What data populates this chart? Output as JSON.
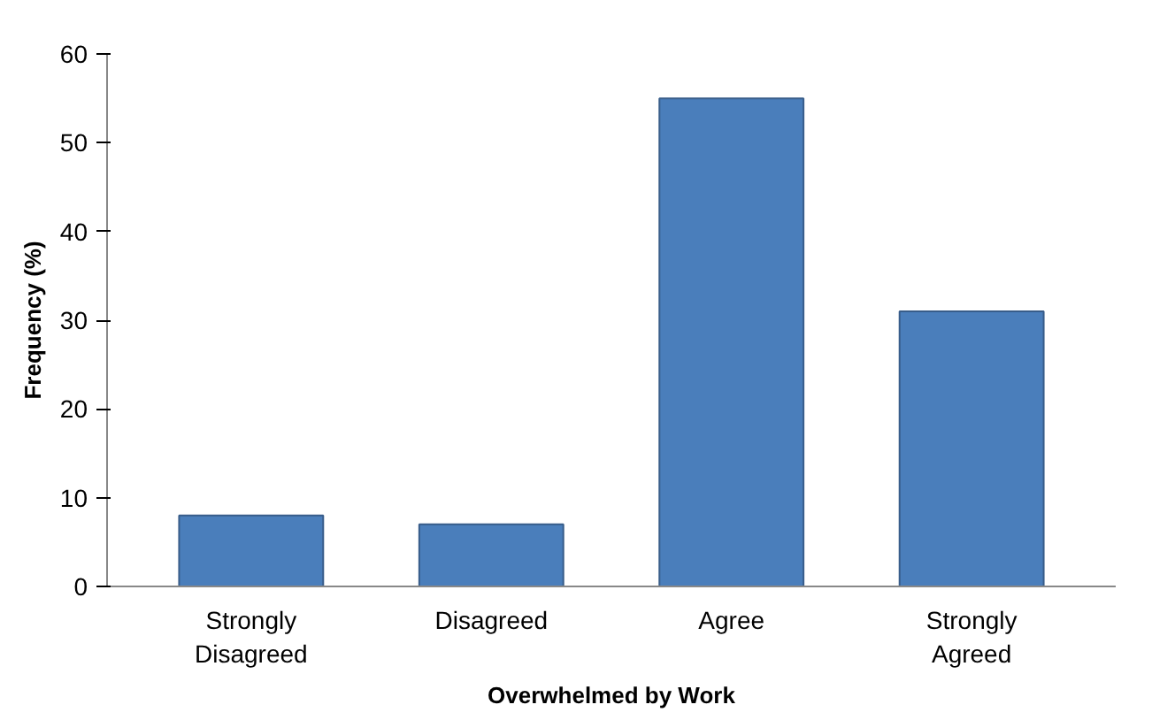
{
  "chart_data": {
    "type": "bar",
    "xlabel": "Overwhelmed by Work",
    "ylabel": "Frequency (%)",
    "categories": [
      "Strongly Disagreed",
      "Disagreed",
      "Agree",
      "Strongly Agreed"
    ],
    "values": [
      8,
      7,
      55,
      31
    ],
    "color": "#4a7ebb",
    "ylim": [
      0,
      60
    ],
    "yticks": [
      0,
      10,
      20,
      30,
      40,
      50,
      60
    ],
    "grid": false
  }
}
